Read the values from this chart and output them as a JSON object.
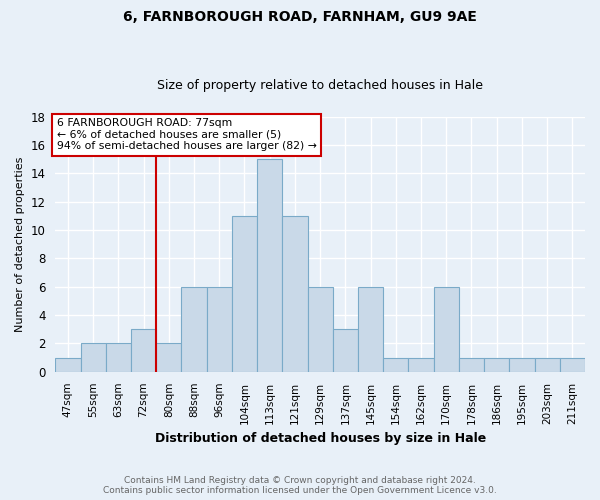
{
  "title1": "6, FARNBOROUGH ROAD, FARNHAM, GU9 9AE",
  "title2": "Size of property relative to detached houses in Hale",
  "xlabel": "Distribution of detached houses by size in Hale",
  "ylabel": "Number of detached properties",
  "categories": [
    "47sqm",
    "55sqm",
    "63sqm",
    "72sqm",
    "80sqm",
    "88sqm",
    "96sqm",
    "104sqm",
    "113sqm",
    "121sqm",
    "129sqm",
    "137sqm",
    "145sqm",
    "154sqm",
    "162sqm",
    "170sqm",
    "178sqm",
    "186sqm",
    "195sqm",
    "203sqm",
    "211sqm"
  ],
  "values": [
    1,
    2,
    2,
    3,
    2,
    6,
    6,
    11,
    15,
    11,
    6,
    3,
    6,
    1,
    1,
    6,
    1,
    1,
    1,
    1,
    1
  ],
  "bar_color": "#c9d9e8",
  "bar_edge_color": "#7aaac8",
  "ylim": [
    0,
    18
  ],
  "yticks": [
    0,
    2,
    4,
    6,
    8,
    10,
    12,
    14,
    16,
    18
  ],
  "property_label": "6 FARNBOROUGH ROAD: 77sqm",
  "annotation_line1": "← 6% of detached houses are smaller (5)",
  "annotation_line2": "94% of semi-detached houses are larger (82) →",
  "vline_color": "#cc0000",
  "annotation_box_edge": "#cc0000",
  "background_color": "#e8f0f8",
  "grid_color": "#ffffff",
  "footer1": "Contains HM Land Registry data © Crown copyright and database right 2024.",
  "footer2": "Contains public sector information licensed under the Open Government Licence v3.0."
}
